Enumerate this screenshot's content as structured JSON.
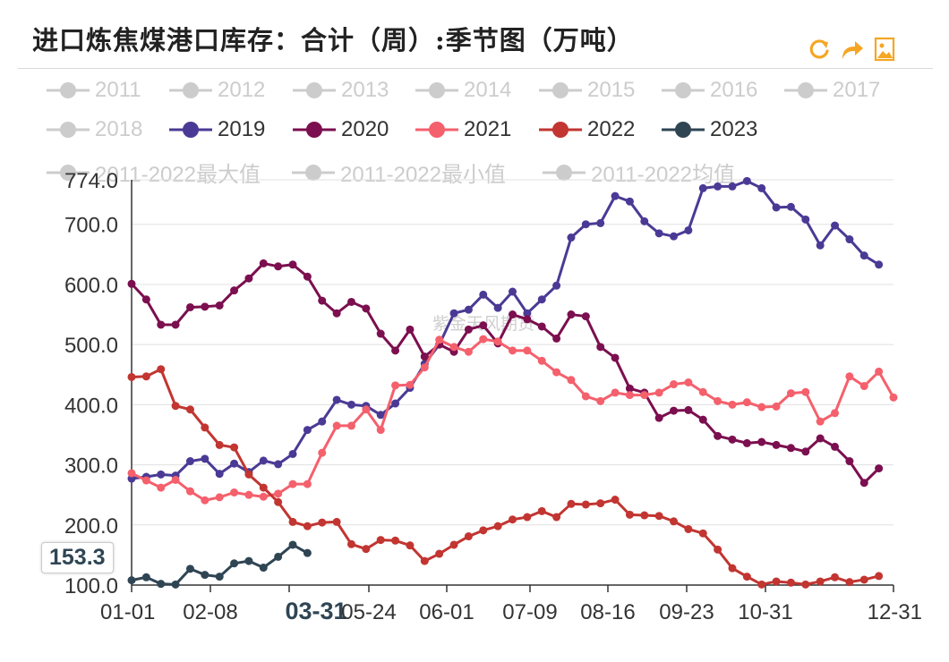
{
  "title": "进口炼焦煤港口库存：合计（周）:季节图（万吨）",
  "watermark": "紫金天风期货",
  "toolbox": [
    "refresh-icon",
    "forward-icon",
    "save-image-icon"
  ],
  "highlight_label": "03-31",
  "tooltip_value": "153.3",
  "chart_data": {
    "type": "line",
    "x_ticks": [
      "01-01",
      "02-08",
      "03-31",
      "05-24",
      "06-01",
      "07-09",
      "08-16",
      "09-23",
      "10-31",
      "12-31"
    ],
    "y_ticks": [
      "774.0",
      "700.0",
      "600.0",
      "500.0",
      "400.0",
      "300.0",
      "200.0",
      "100.0"
    ],
    "ylim": [
      100,
      774
    ],
    "grid": true,
    "legend_position": "top",
    "series": [
      {
        "name": "2011",
        "color": "#cccccc",
        "visible": false,
        "values": []
      },
      {
        "name": "2012",
        "color": "#cccccc",
        "visible": false,
        "values": []
      },
      {
        "name": "2013",
        "color": "#cccccc",
        "visible": false,
        "values": []
      },
      {
        "name": "2014",
        "color": "#cccccc",
        "visible": false,
        "values": []
      },
      {
        "name": "2015",
        "color": "#cccccc",
        "visible": false,
        "values": []
      },
      {
        "name": "2016",
        "color": "#cccccc",
        "visible": false,
        "values": []
      },
      {
        "name": "2017",
        "color": "#cccccc",
        "visible": false,
        "values": []
      },
      {
        "name": "2018",
        "color": "#cccccc",
        "visible": false,
        "values": []
      },
      {
        "name": "2019",
        "color": "#4b3a95",
        "visible": true,
        "values": [
          277,
          280,
          284,
          282,
          306,
          310,
          285,
          302,
          288,
          307,
          301,
          318,
          358,
          372,
          408,
          400,
          398,
          383,
          402,
          428,
          468,
          500,
          552,
          558,
          583,
          561,
          588,
          552,
          575,
          598,
          678,
          700,
          702,
          747,
          738,
          705,
          685,
          680,
          690,
          760,
          763,
          763,
          772,
          760,
          728,
          729,
          708,
          665,
          698,
          675,
          648,
          633
        ]
      },
      {
        "name": "2020",
        "color": "#7b0f4f",
        "visible": true,
        "values": [
          601,
          575,
          533,
          533,
          562,
          563,
          565,
          590,
          610,
          635,
          630,
          633,
          613,
          573,
          552,
          571,
          560,
          518,
          490,
          525,
          480,
          500,
          488,
          525,
          532,
          502,
          550,
          542,
          530,
          510,
          550,
          547,
          496,
          478,
          427,
          420,
          378,
          390,
          391,
          375,
          348,
          342,
          336,
          338,
          333,
          328,
          322,
          344,
          330,
          306,
          270,
          294
        ]
      },
      {
        "name": "2021",
        "color": "#f4606c",
        "visible": true,
        "values": [
          286,
          274,
          262,
          275,
          256,
          241,
          246,
          254,
          250,
          247,
          252,
          268,
          268,
          320,
          365,
          365,
          392,
          358,
          432,
          433,
          462,
          508,
          496,
          488,
          509,
          505,
          490,
          490,
          473,
          454,
          441,
          414,
          406,
          420,
          416,
          416,
          420,
          434,
          437,
          421,
          406,
          400,
          404,
          396,
          397,
          419,
          421,
          372,
          386,
          447,
          431,
          455,
          412
        ]
      },
      {
        "name": "2022",
        "color": "#c23531",
        "visible": true,
        "values": [
          446,
          447,
          459,
          398,
          392,
          362,
          333,
          329,
          284,
          262,
          238,
          205,
          198,
          204,
          205,
          168,
          160,
          175,
          174,
          166,
          140,
          152,
          167,
          181,
          191,
          198,
          209,
          213,
          223,
          213,
          235,
          234,
          236,
          242,
          217,
          216,
          215,
          206,
          193,
          186,
          159,
          128,
          114,
          101,
          106,
          104,
          101,
          106,
          113,
          105,
          109,
          115
        ]
      },
      {
        "name": "2023",
        "color": "#2f4554",
        "visible": true,
        "values": [
          108,
          113,
          102,
          101,
          127,
          117,
          114,
          136,
          140,
          129,
          147,
          167,
          153.3
        ]
      },
      {
        "name": "2011-2022最大值",
        "color": "#cccccc",
        "visible": false,
        "values": []
      },
      {
        "name": "2011-2022最小值",
        "color": "#cccccc",
        "visible": false,
        "values": []
      },
      {
        "name": "2011-2022均值",
        "color": "#cccccc",
        "visible": false,
        "values": []
      }
    ]
  }
}
